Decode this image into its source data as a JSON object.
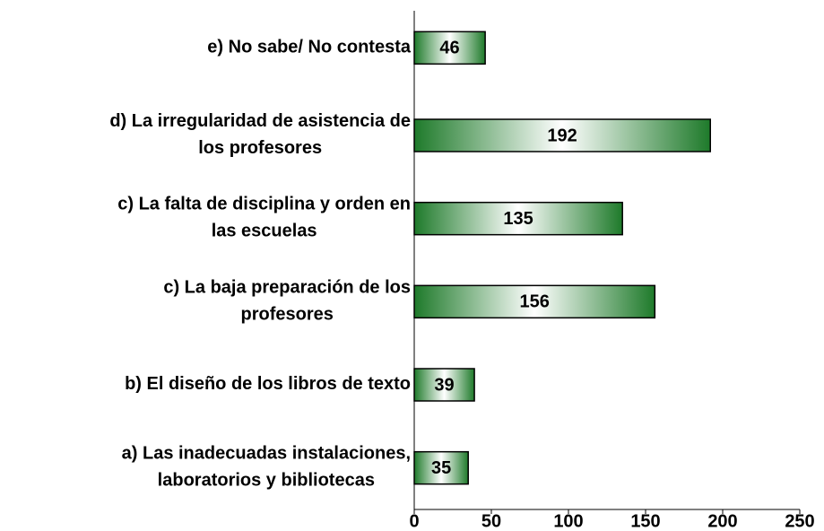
{
  "chart_data": {
    "type": "barh",
    "categories": [
      "e) No sabe/ No contesta",
      "d) La irregularidad de asistencia de\nlos profesores",
      "c) La falta de disciplina y orden en\nlas escuelas",
      "c) La baja preparación de los\nprofesores",
      "b) El diseño de los libros de texto",
      "a) Las inadecuadas instalaciones,\nlaboratorios y bibliotecas"
    ],
    "values": [
      46,
      192,
      135,
      156,
      39,
      35
    ],
    "color": "#1e7a2a",
    "xlim": [
      0,
      250
    ],
    "xticks": [
      0,
      50,
      100,
      150,
      200,
      250
    ],
    "grid": false
  }
}
